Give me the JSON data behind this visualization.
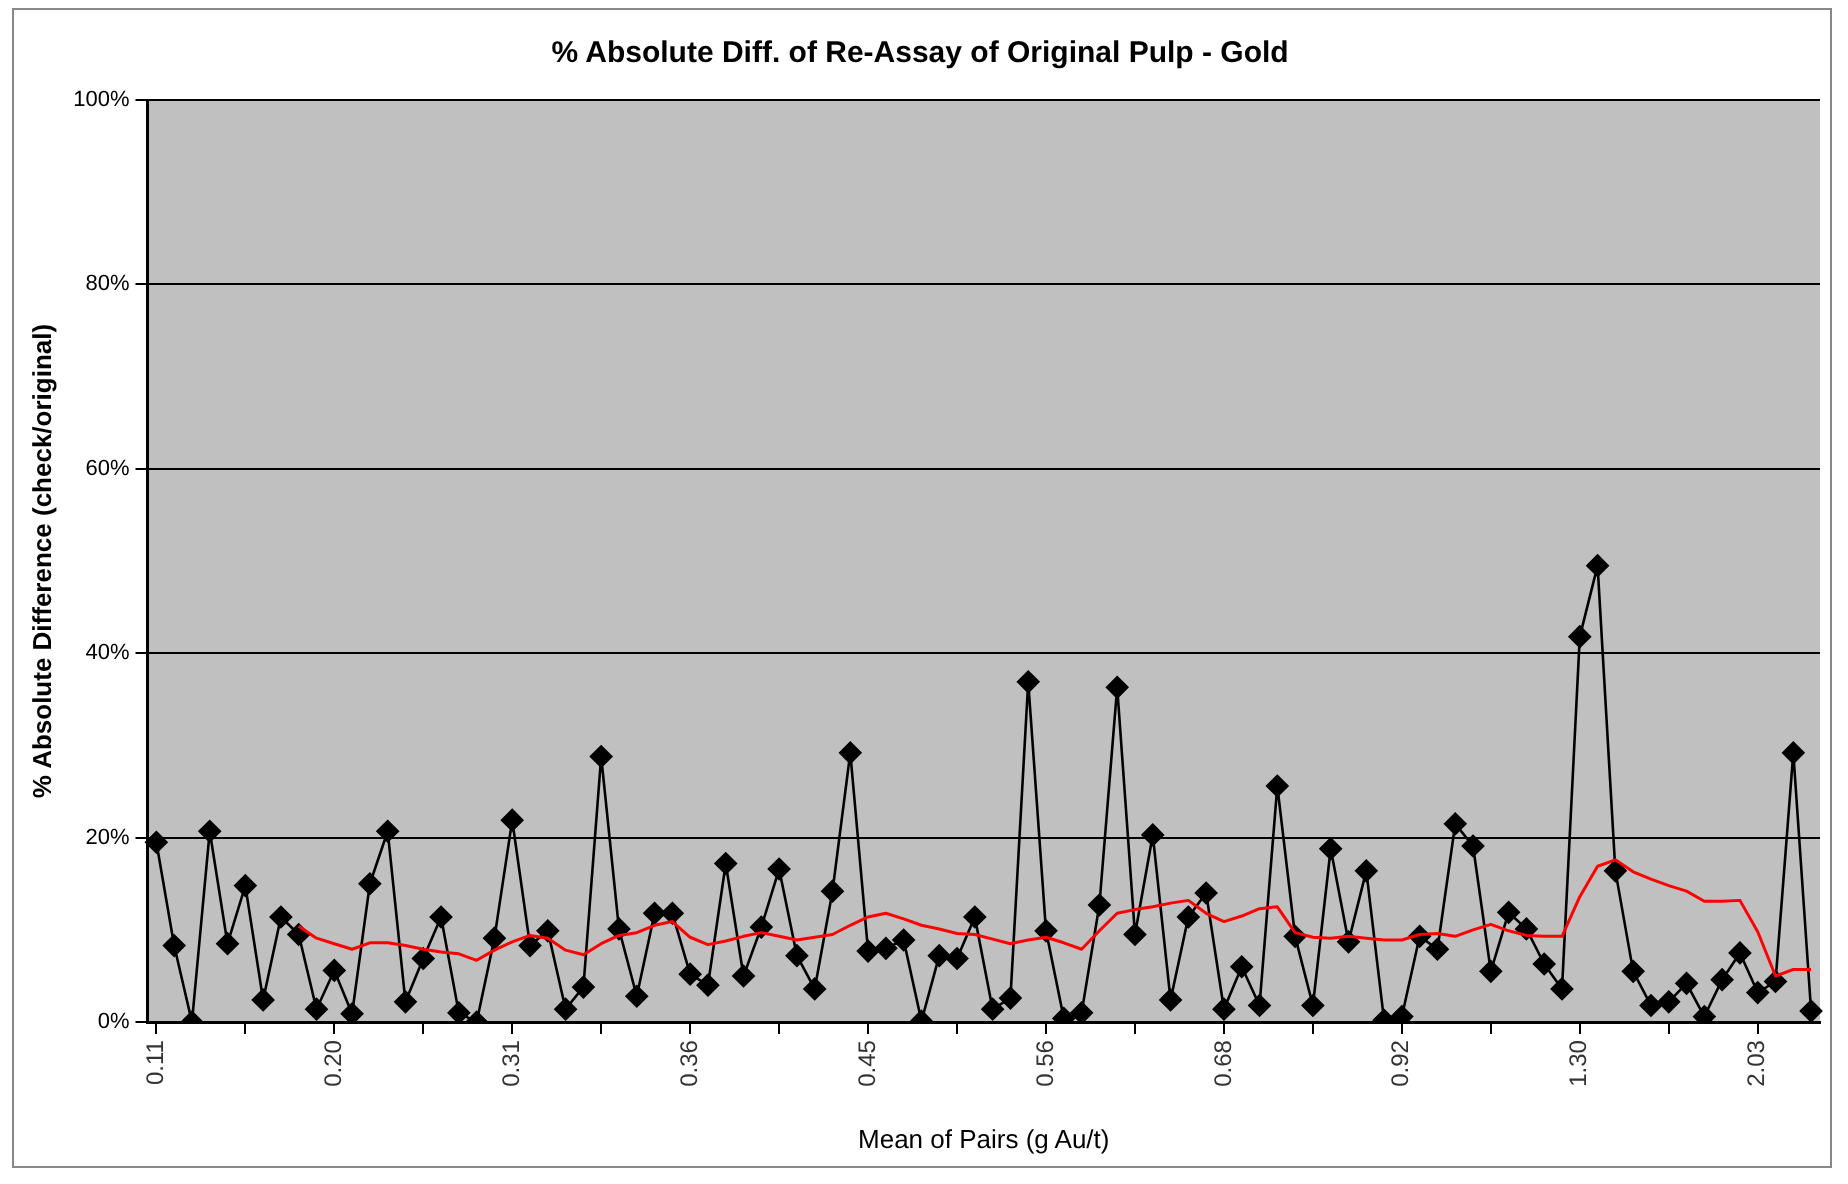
{
  "chart_data": {
    "type": "line",
    "title": "% Absolute Diff. of Re-Assay of Original Pulp - Gold",
    "xlabel": "Mean of Pairs (g Au/t)",
    "ylabel": "% Absolute Difference (check/original)",
    "categories": [
      "0.11",
      null,
      null,
      null,
      null,
      null,
      null,
      null,
      null,
      null,
      "0.20",
      null,
      null,
      null,
      null,
      null,
      null,
      null,
      null,
      null,
      "0.31",
      null,
      null,
      null,
      null,
      null,
      null,
      null,
      null,
      null,
      "0.36",
      null,
      null,
      null,
      null,
      null,
      null,
      null,
      null,
      null,
      "0.45",
      null,
      null,
      null,
      null,
      null,
      null,
      null,
      null,
      null,
      "0.56",
      null,
      null,
      null,
      null,
      null,
      null,
      null,
      null,
      null,
      "0.68",
      null,
      null,
      null,
      null,
      null,
      null,
      null,
      null,
      null,
      "0.92",
      null,
      null,
      null,
      null,
      null,
      null,
      null,
      null,
      null,
      "1.30",
      null,
      null,
      null,
      null,
      null,
      null,
      null,
      null,
      null,
      "2.03",
      null,
      null,
      null
    ],
    "series": [
      {
        "color": "#000000",
        "marker": "diamond",
        "values": [
          19.5,
          8.3,
          0,
          20.7,
          8.5,
          14.8,
          2.4,
          11.4,
          9.5,
          1.4,
          5.6,
          0.9,
          15,
          20.7,
          2.2,
          6.9,
          11.4,
          1,
          0,
          9.1,
          21.9,
          8.3,
          9.9,
          1.4,
          3.8,
          28.8,
          10.1,
          2.8,
          11.8,
          11.8,
          5.2,
          4,
          17.2,
          5,
          10.3,
          16.6,
          7.2,
          3.6,
          14.2,
          29.2,
          7.7,
          8,
          8.9,
          0.1,
          7.2,
          6.9,
          11.4,
          1.4,
          2.6,
          36.9,
          9.9,
          0.4,
          1,
          12.7,
          36.3,
          9.5,
          20.3,
          2.4,
          11.4,
          14,
          1.4,
          6,
          1.8,
          25.6,
          9.3,
          1.8,
          18.8,
          8.7,
          16.4,
          0.2,
          0.6,
          9.3,
          7.9,
          21.5,
          19.1,
          5.5,
          11.9,
          10.1,
          6.3,
          3.6,
          41.8,
          49.5,
          16.4,
          5.5,
          1.8,
          2.2,
          4.2,
          0.6,
          4.6,
          7.5,
          3.2,
          4.4,
          29.2,
          1.2
        ]
      },
      {
        "color": "#ff0000",
        "marker": "none",
        "values": [
          null,
          null,
          null,
          null,
          null,
          null,
          null,
          null,
          10.4,
          9.1,
          8.5,
          7.9,
          8.6,
          8.6,
          8.3,
          7.9,
          7.6,
          7.4,
          6.7,
          7.8,
          8.7,
          9.4,
          9.1,
          7.8,
          7.3,
          8.5,
          9.4,
          9.7,
          10.5,
          10.9,
          9.2,
          8.4,
          8.8,
          9.3,
          9.7,
          9.3,
          8.9,
          9.2,
          9.5,
          10.5,
          11.4,
          11.8,
          11.2,
          10.5,
          10.1,
          9.6,
          9.5,
          9,
          8.5,
          8.9,
          9.2,
          8.6,
          7.9,
          9.9,
          11.8,
          12.2,
          12.5,
          12.9,
          13.2,
          11.8,
          10.9,
          11.5,
          12.3,
          12.5,
          9.7,
          9.2,
          9.1,
          9.3,
          9.1,
          8.9,
          8.9,
          9.5,
          9.6,
          9.3,
          10,
          10.6,
          9.9,
          9.4,
          9.3,
          9.3,
          13.6,
          16.9,
          17.6,
          16.3,
          15.5,
          14.8,
          14.2,
          13.1,
          13.1,
          13.2,
          9.8,
          5,
          5.7,
          5.7
        ]
      }
    ],
    "ylim": [
      0,
      100
    ],
    "yticks": [
      {
        "value": 0,
        "label": "0%"
      },
      {
        "value": 20,
        "label": "20%"
      },
      {
        "value": 40,
        "label": "40%"
      },
      {
        "value": 60,
        "label": "60%"
      },
      {
        "value": 80,
        "label": "80%"
      },
      {
        "value": 100,
        "label": "100%"
      }
    ],
    "grid": "y",
    "legend": false,
    "line_style": "solid"
  }
}
